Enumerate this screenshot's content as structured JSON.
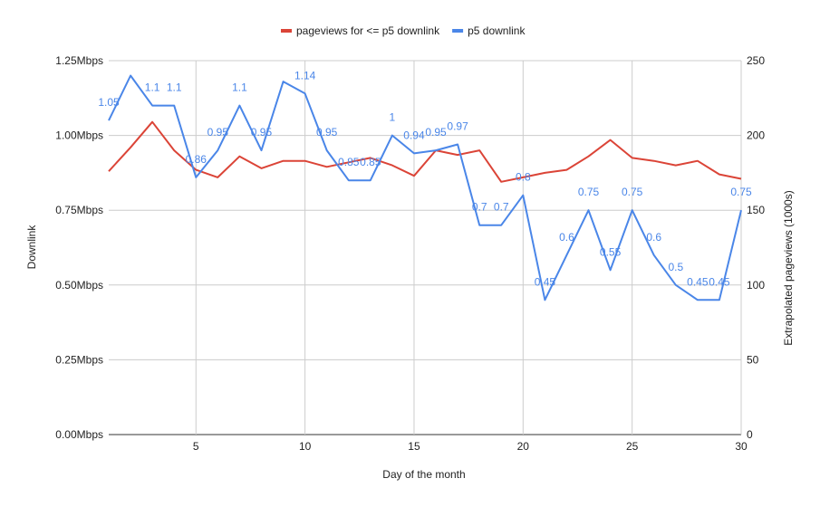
{
  "chart_data": {
    "type": "line",
    "x": [
      1,
      2,
      3,
      4,
      5,
      6,
      7,
      8,
      9,
      10,
      11,
      12,
      13,
      14,
      15,
      16,
      17,
      18,
      19,
      20,
      21,
      22,
      23,
      24,
      25,
      26,
      27,
      28,
      29,
      30
    ],
    "xlabel": "Day of the month",
    "ylabel": "Downlink",
    "ylabel_right": "Extrapolated pageviews (1000s)",
    "xlim": [
      1,
      30
    ],
    "ylim": [
      0,
      1.25
    ],
    "ylim_right": [
      0,
      250
    ],
    "xticks": [
      5,
      10,
      15,
      20,
      25,
      30
    ],
    "yticks_left": [
      "0.00Mbps",
      "0.25Mbps",
      "0.50Mbps",
      "0.75Mbps",
      "1.00Mbps",
      "1.25Mbps"
    ],
    "yticks_left_values": [
      0,
      0.25,
      0.5,
      0.75,
      1.0,
      1.25
    ],
    "yticks_right": [
      0,
      50,
      100,
      150,
      200,
      250
    ],
    "grid": true,
    "legend_position": "top",
    "series": [
      {
        "name": "pageviews for <= p5 downlink",
        "axis": "right",
        "color": "#db4437",
        "values": [
          176,
          192,
          209,
          190,
          177,
          172,
          186,
          178,
          183,
          183,
          179,
          182,
          185,
          180,
          173,
          190,
          187,
          190,
          169,
          172,
          175,
          177,
          186,
          197,
          185,
          183,
          180,
          183,
          174,
          171
        ]
      },
      {
        "name": "p5 downlink",
        "axis": "left",
        "color": "#4a86e8",
        "values": [
          1.05,
          1.2,
          1.1,
          1.1,
          0.86,
          0.95,
          1.1,
          0.95,
          1.18,
          1.14,
          0.95,
          0.85,
          0.85,
          1.0,
          0.94,
          0.95,
          0.97,
          0.7,
          0.7,
          0.8,
          0.45,
          0.6,
          0.75,
          0.55,
          0.75,
          0.6,
          0.5,
          0.45,
          0.45,
          0.75
        ],
        "data_labels": [
          "1.05",
          "",
          "1.1",
          "1.1",
          "0.86",
          "0.95",
          "1.1",
          "0.95",
          "",
          "1.14",
          "0.95",
          "0.85",
          "0.85",
          "1",
          "0.94",
          "0.95",
          "0.97",
          "0.7",
          "0.7",
          "0.8",
          "0.45",
          "0.6",
          "0.75",
          "0.55",
          "0.75",
          "0.6",
          "0.5",
          "0.45",
          "0.45",
          "0.75"
        ]
      }
    ]
  }
}
